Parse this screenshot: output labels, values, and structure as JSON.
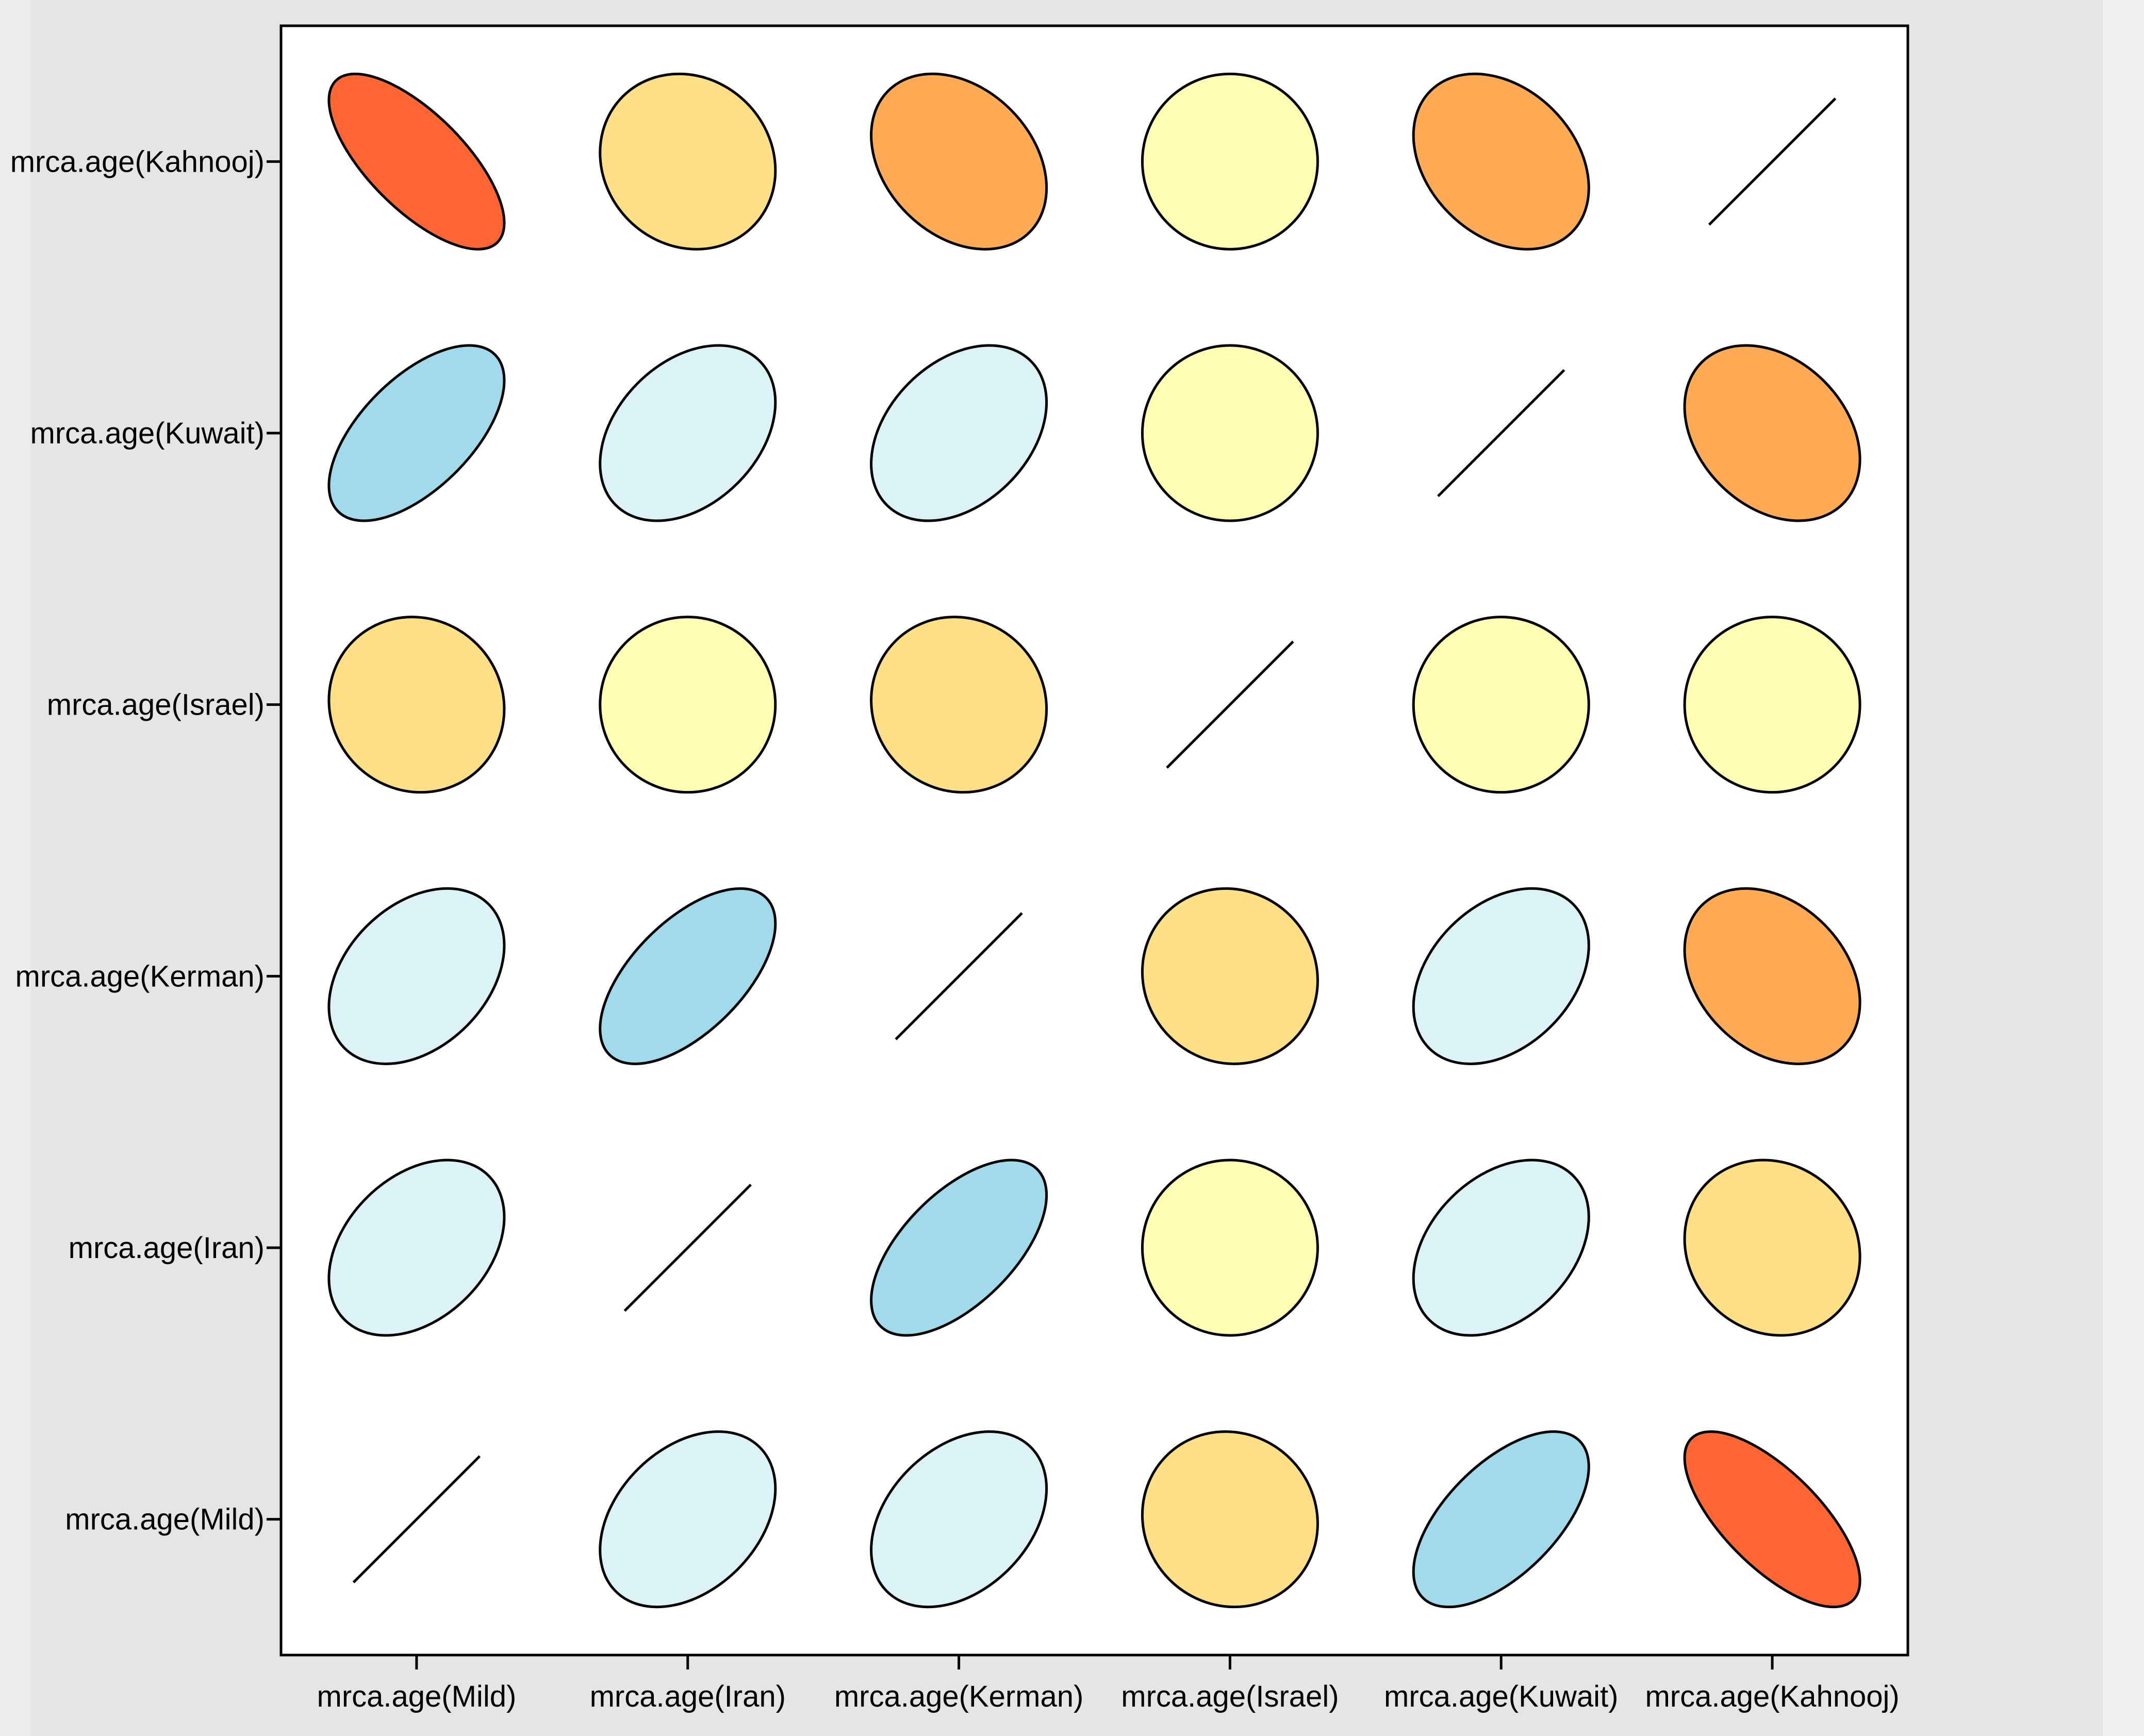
{
  "chart_data": {
    "type": "correlation-ellipse-matrix",
    "variables": [
      "mrca.age(Mild)",
      "mrca.age(Iran)",
      "mrca.age(Kerman)",
      "mrca.age(Israel)",
      "mrca.age(Kuwait)",
      "mrca.age(Kahnooj)"
    ],
    "x_tick_labels": [
      "mrca.age(Mild)",
      "mrca.age(Iran)",
      "mrca.age(Kerman)",
      "mrca.age(Israel)",
      "mrca.age(Kuwait)",
      "mrca.age(Kahnooj)"
    ],
    "y_tick_labels_top_to_bottom": [
      "mrca.age(Kahnooj)",
      "mrca.age(Kuwait)",
      "mrca.age(Israel)",
      "mrca.age(Kerman)",
      "mrca.age(Iran)",
      "mrca.age(Mild)"
    ],
    "correlation_matrix": [
      [
        1.0,
        0.35,
        0.35,
        -0.05,
        0.6,
        -0.7
      ],
      [
        0.35,
        1.0,
        0.6,
        0.0,
        0.35,
        -0.1
      ],
      [
        0.35,
        0.6,
        1.0,
        -0.05,
        0.35,
        -0.3
      ],
      [
        -0.05,
        0.0,
        -0.05,
        1.0,
        0.0,
        0.0
      ],
      [
        0.6,
        0.35,
        0.35,
        0.0,
        1.0,
        -0.3
      ],
      [
        -0.7,
        -0.1,
        -0.3,
        0.0,
        -0.3,
        1.0
      ]
    ],
    "colors": {
      "strong_negative": "#ff6633",
      "moderate_negative": "#ffaa55",
      "weak_negative": "#ffdf85",
      "near_zero": "#ffffb3",
      "weak_positive": "#dbf2f7",
      "moderate_positive": "#a1dbeb",
      "diagonal": "#000000"
    },
    "panel_background": "#ffffff",
    "page_background": "#e5e5e5",
    "grid": false,
    "legend": "none"
  }
}
